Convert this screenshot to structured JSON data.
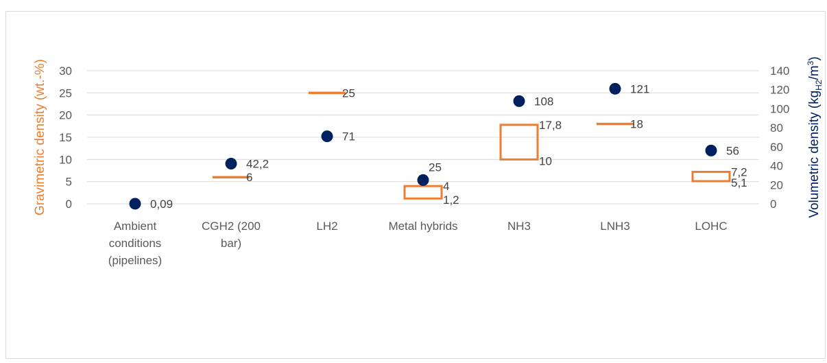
{
  "chart_data": {
    "type": "scatter",
    "categories": [
      [
        "Ambient",
        "conditions",
        "(pipelines)"
      ],
      [
        "CGH2 (200",
        "bar)"
      ],
      [
        "LH2"
      ],
      [
        "Metal hybrids"
      ],
      [
        "NH3"
      ],
      [
        "LNH3"
      ],
      [
        "LOHC"
      ]
    ],
    "y_left": {
      "label": "Gravimetric density (wt.-%)",
      "range": [
        0,
        30
      ],
      "ticks": [
        0,
        5,
        10,
        15,
        20,
        25,
        30
      ],
      "color": "#ED7D31"
    },
    "y_right": {
      "label_main": "Volumetric density (kg",
      "label_sub": "H2",
      "label_tail": "/m",
      "label_sup": "3",
      "label_close": ")",
      "range": [
        0,
        140
      ],
      "ticks": [
        0,
        20,
        40,
        60,
        80,
        100,
        120,
        140
      ],
      "color": "#002060"
    },
    "gravimetric_ranges": [
      null,
      {
        "low": 6,
        "high": 6,
        "labels": [
          "6"
        ]
      },
      {
        "low": 25,
        "high": 25,
        "labels": [
          "25"
        ]
      },
      {
        "low": 1.2,
        "high": 4,
        "labels": [
          "4",
          "1,2"
        ]
      },
      {
        "low": 10,
        "high": 17.8,
        "labels": [
          "17,8",
          "10"
        ]
      },
      {
        "low": 18,
        "high": 18,
        "labels": [
          "18"
        ]
      },
      {
        "low": 5.1,
        "high": 7.2,
        "labels": [
          "7,2",
          "5,1"
        ]
      }
    ],
    "volumetric_points": [
      {
        "value": 0.09,
        "label": "0,09"
      },
      {
        "value": 42.2,
        "label": "42,2"
      },
      {
        "value": 71,
        "label": "71"
      },
      {
        "value": 25,
        "label": "25"
      },
      {
        "value": 108,
        "label": "108"
      },
      {
        "value": 121,
        "label": "121"
      },
      {
        "value": 56,
        "label": "56"
      }
    ],
    "marker_color": "#002060",
    "range_color": "#ED7D31",
    "grid": true
  }
}
